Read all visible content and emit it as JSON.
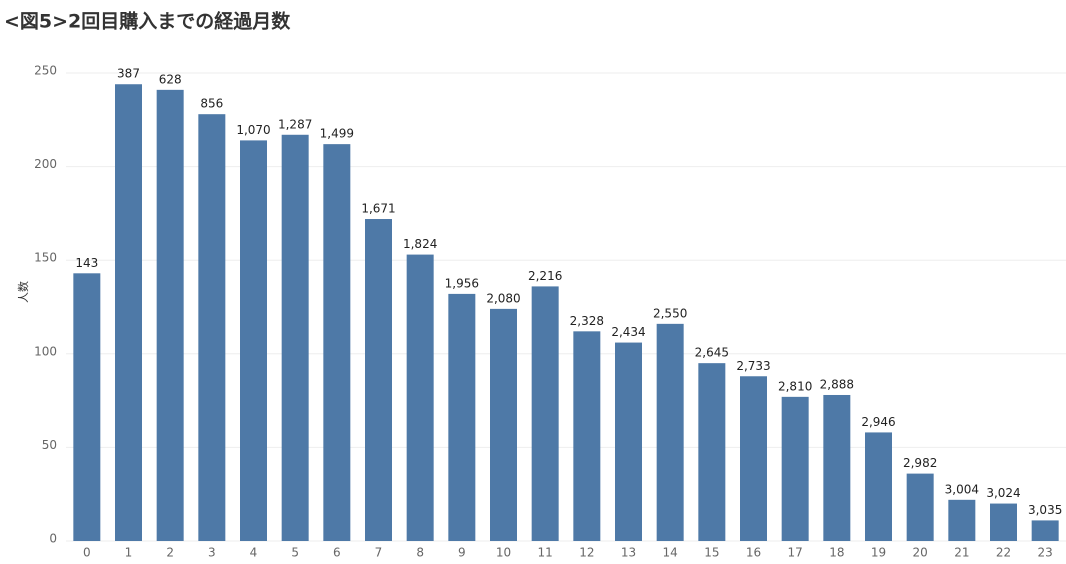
{
  "chart_data": {
    "type": "bar",
    "title": "<図5>2回目購入までの経過月数",
    "y_label": "人数",
    "categories": [
      "0",
      "1",
      "2",
      "3",
      "4",
      "5",
      "6",
      "7",
      "8",
      "9",
      "10",
      "11",
      "12",
      "13",
      "14",
      "15",
      "16",
      "17",
      "18",
      "19",
      "20",
      "21",
      "22",
      "23"
    ],
    "values": [
      143,
      244,
      241,
      228,
      214,
      217,
      212,
      172,
      153,
      132,
      124,
      136,
      112,
      106,
      116,
      95,
      88,
      77,
      78,
      58,
      36,
      22,
      20,
      11
    ],
    "data_labels": [
      "143",
      "387",
      "628",
      "856",
      "1,070",
      "1,287",
      "1,499",
      "1,671",
      "1,824",
      "1,956",
      "2,080",
      "2,216",
      "2,328",
      "2,434",
      "2,550",
      "2,645",
      "2,733",
      "2,810",
      "2,888",
      "2,946",
      "2,982",
      "3,004",
      "3,024",
      "3,035"
    ],
    "color": "#4e79a7",
    "ylim": [
      0,
      250
    ],
    "yticks": [
      0,
      50,
      100,
      150,
      200,
      250
    ],
    "grid": true
  }
}
